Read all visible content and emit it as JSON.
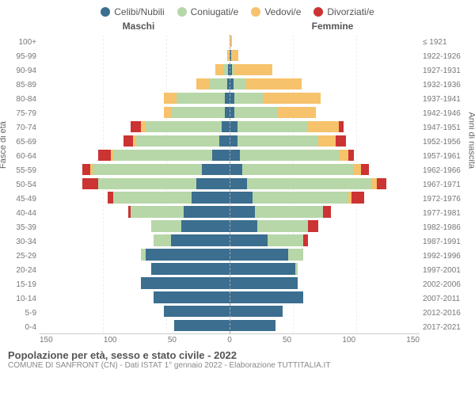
{
  "legend": {
    "items": [
      {
        "label": "Celibi/Nubili",
        "color": "#3b6e8f"
      },
      {
        "label": "Coniugati/e",
        "color": "#b7d7a8"
      },
      {
        "label": "Vedovi/e",
        "color": "#f6c26b"
      },
      {
        "label": "Divorziati/e",
        "color": "#cc3333"
      }
    ]
  },
  "gender": {
    "left": "Maschi",
    "right": "Femmine"
  },
  "axis": {
    "left_title": "Fasce di età",
    "right_title": "Anni di nascita",
    "x_ticks": [
      "150",
      "100",
      "50",
      "0",
      "50",
      "100",
      "150"
    ],
    "x_max": 150
  },
  "footer": {
    "title": "Popolazione per età, sesso e stato civile - 2022",
    "sub": "COMUNE DI SANFRONT (CN) - Dati ISTAT 1° gennaio 2022 - Elaborazione TUTTITALIA.IT"
  },
  "colors": {
    "celibi": "#3b6e8f",
    "coniugati": "#b7d7a8",
    "vedovi": "#f6c26b",
    "divorziati": "#cc3333",
    "background": "#ffffff",
    "grid": "#eeeeee",
    "center": "#aaaaaa",
    "text": "#777777"
  },
  "rows": [
    {
      "age": "100+",
      "birth": "≤ 1921",
      "m": {
        "c": 0,
        "co": 0,
        "v": 0,
        "d": 0
      },
      "f": {
        "c": 0,
        "co": 0,
        "v": 2,
        "d": 0
      }
    },
    {
      "age": "95-99",
      "birth": "1922-1926",
      "m": {
        "c": 0,
        "co": 0,
        "v": 2,
        "d": 0
      },
      "f": {
        "c": 1,
        "co": 0,
        "v": 6,
        "d": 0
      }
    },
    {
      "age": "90-94",
      "birth": "1927-1931",
      "m": {
        "c": 1,
        "co": 4,
        "v": 6,
        "d": 0
      },
      "f": {
        "c": 2,
        "co": 2,
        "v": 30,
        "d": 0
      }
    },
    {
      "age": "85-89",
      "birth": "1932-1936",
      "m": {
        "c": 2,
        "co": 14,
        "v": 10,
        "d": 0
      },
      "f": {
        "c": 3,
        "co": 10,
        "v": 44,
        "d": 0
      }
    },
    {
      "age": "80-84",
      "birth": "1937-1941",
      "m": {
        "c": 4,
        "co": 38,
        "v": 10,
        "d": 0
      },
      "f": {
        "c": 4,
        "co": 22,
        "v": 46,
        "d": 0
      }
    },
    {
      "age": "75-79",
      "birth": "1942-1946",
      "m": {
        "c": 4,
        "co": 42,
        "v": 6,
        "d": 0
      },
      "f": {
        "c": 4,
        "co": 34,
        "v": 30,
        "d": 0
      }
    },
    {
      "age": "70-74",
      "birth": "1947-1951",
      "m": {
        "c": 6,
        "co": 60,
        "v": 4,
        "d": 8
      },
      "f": {
        "c": 6,
        "co": 56,
        "v": 24,
        "d": 4
      }
    },
    {
      "age": "65-69",
      "birth": "1952-1956",
      "m": {
        "c": 8,
        "co": 66,
        "v": 2,
        "d": 8
      },
      "f": {
        "c": 6,
        "co": 64,
        "v": 14,
        "d": 8
      }
    },
    {
      "age": "60-64",
      "birth": "1957-1961",
      "m": {
        "c": 14,
        "co": 78,
        "v": 2,
        "d": 10
      },
      "f": {
        "c": 8,
        "co": 78,
        "v": 8,
        "d": 4
      }
    },
    {
      "age": "55-59",
      "birth": "1962-1966",
      "m": {
        "c": 22,
        "co": 86,
        "v": 2,
        "d": 6
      },
      "f": {
        "c": 10,
        "co": 88,
        "v": 6,
        "d": 6
      }
    },
    {
      "age": "50-54",
      "birth": "1967-1971",
      "m": {
        "c": 26,
        "co": 78,
        "v": 0,
        "d": 12
      },
      "f": {
        "c": 14,
        "co": 98,
        "v": 4,
        "d": 8
      }
    },
    {
      "age": "45-49",
      "birth": "1972-1976",
      "m": {
        "c": 30,
        "co": 62,
        "v": 0,
        "d": 4
      },
      "f": {
        "c": 18,
        "co": 76,
        "v": 2,
        "d": 10
      }
    },
    {
      "age": "40-44",
      "birth": "1977-1981",
      "m": {
        "c": 36,
        "co": 42,
        "v": 0,
        "d": 2
      },
      "f": {
        "c": 20,
        "co": 54,
        "v": 0,
        "d": 6
      }
    },
    {
      "age": "35-39",
      "birth": "1982-1986",
      "m": {
        "c": 38,
        "co": 24,
        "v": 0,
        "d": 0
      },
      "f": {
        "c": 22,
        "co": 40,
        "v": 0,
        "d": 8
      }
    },
    {
      "age": "30-34",
      "birth": "1987-1991",
      "m": {
        "c": 46,
        "co": 14,
        "v": 0,
        "d": 0
      },
      "f": {
        "c": 30,
        "co": 28,
        "v": 0,
        "d": 4
      }
    },
    {
      "age": "25-29",
      "birth": "1992-1996",
      "m": {
        "c": 66,
        "co": 4,
        "v": 0,
        "d": 0
      },
      "f": {
        "c": 46,
        "co": 12,
        "v": 0,
        "d": 0
      }
    },
    {
      "age": "20-24",
      "birth": "1997-2001",
      "m": {
        "c": 62,
        "co": 0,
        "v": 0,
        "d": 0
      },
      "f": {
        "c": 52,
        "co": 2,
        "v": 0,
        "d": 0
      }
    },
    {
      "age": "15-19",
      "birth": "2002-2006",
      "m": {
        "c": 70,
        "co": 0,
        "v": 0,
        "d": 0
      },
      "f": {
        "c": 54,
        "co": 0,
        "v": 0,
        "d": 0
      }
    },
    {
      "age": "10-14",
      "birth": "2007-2011",
      "m": {
        "c": 60,
        "co": 0,
        "v": 0,
        "d": 0
      },
      "f": {
        "c": 58,
        "co": 0,
        "v": 0,
        "d": 0
      }
    },
    {
      "age": "5-9",
      "birth": "2012-2016",
      "m": {
        "c": 52,
        "co": 0,
        "v": 0,
        "d": 0
      },
      "f": {
        "c": 42,
        "co": 0,
        "v": 0,
        "d": 0
      }
    },
    {
      "age": "0-4",
      "birth": "2017-2021",
      "m": {
        "c": 44,
        "co": 0,
        "v": 0,
        "d": 0
      },
      "f": {
        "c": 36,
        "co": 0,
        "v": 0,
        "d": 0
      }
    }
  ]
}
